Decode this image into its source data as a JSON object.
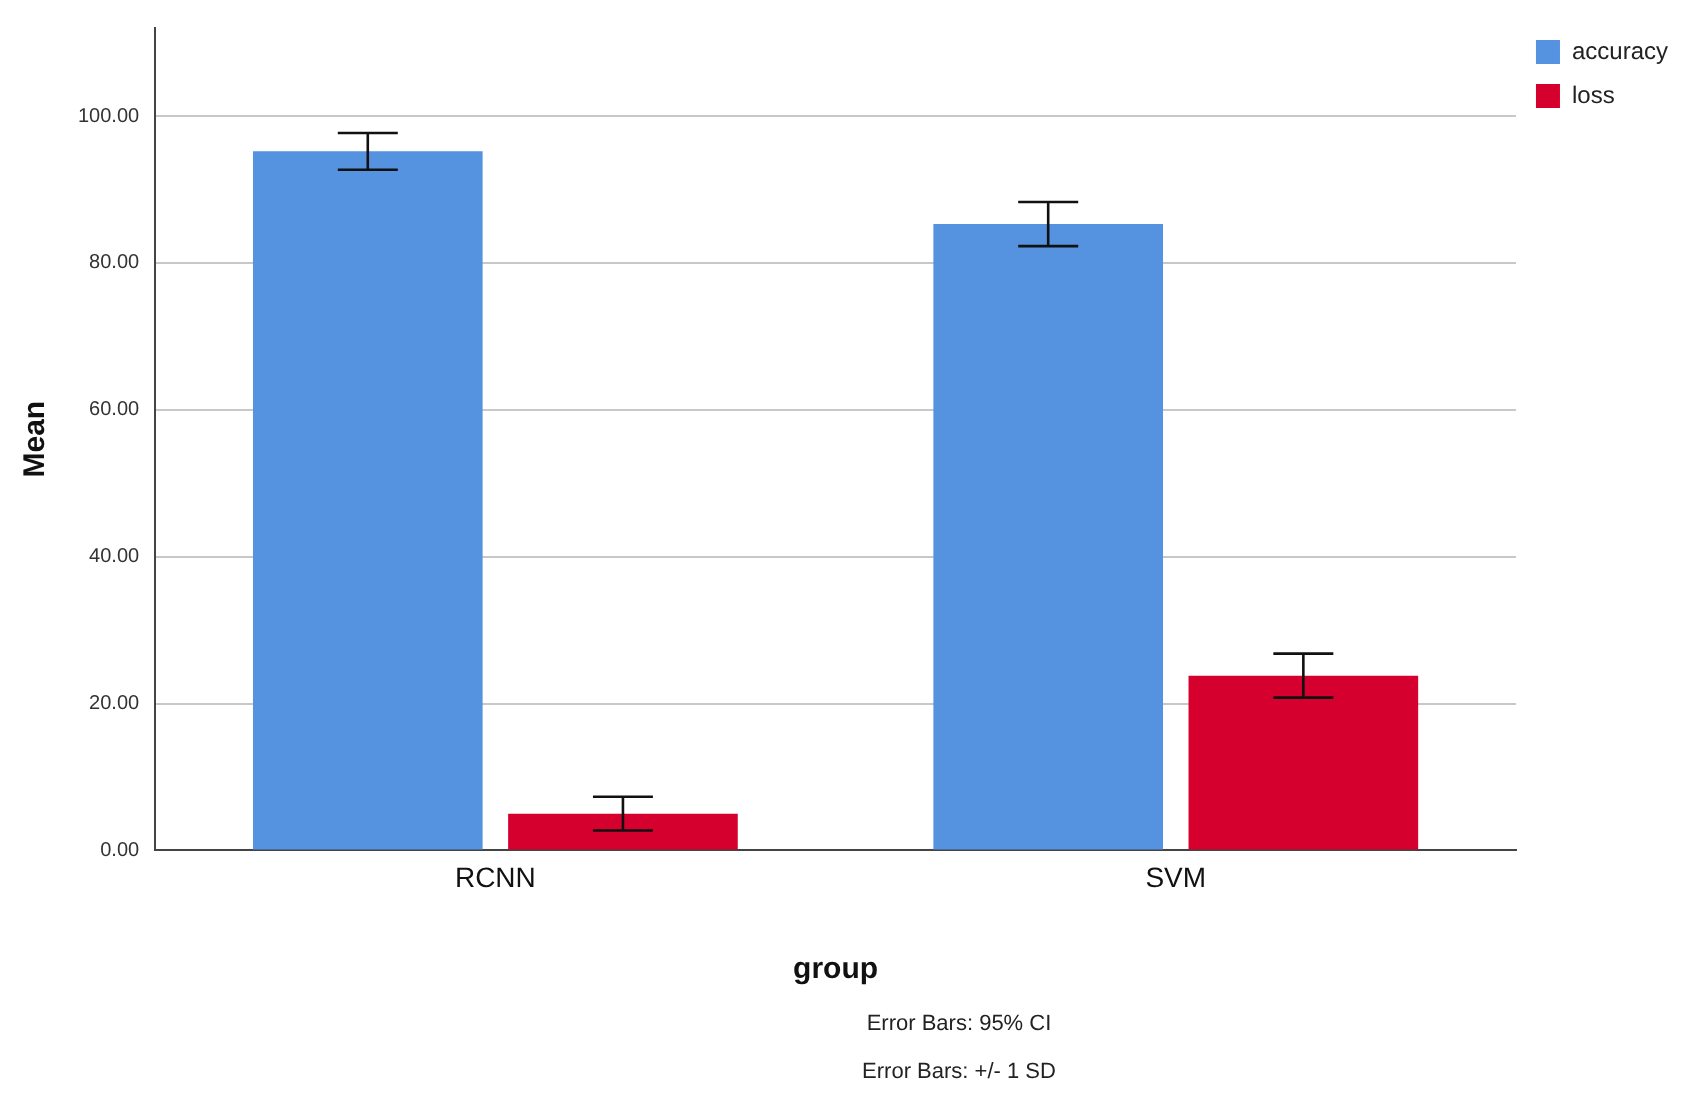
{
  "chart_data": {
    "type": "bar",
    "xlabel": "group",
    "ylabel": "Mean",
    "categories": [
      "RCNN",
      "SVM"
    ],
    "series": [
      {
        "name": "accuracy",
        "color": "#5592e0",
        "values": [
          95.2,
          85.3
        ],
        "errors": [
          2.5,
          3
        ]
      },
      {
        "name": "loss",
        "color": "#d5002e",
        "values": [
          5,
          23.8
        ],
        "errors": [
          2.3,
          3
        ]
      }
    ],
    "ylim": [
      0,
      112
    ],
    "yticks": [
      {
        "value": 0,
        "label": "0.00"
      },
      {
        "value": 20,
        "label": "20.00"
      },
      {
        "value": 40,
        "label": "40.00"
      },
      {
        "value": 60,
        "label": "60.00"
      },
      {
        "value": 80,
        "label": "80.00"
      },
      {
        "value": 100,
        "label": "100.00"
      }
    ],
    "grid": "y",
    "legend": "top right",
    "annotations": [
      "Error Bars: 95% CI",
      "Error Bars: +/- 1 SD"
    ]
  }
}
